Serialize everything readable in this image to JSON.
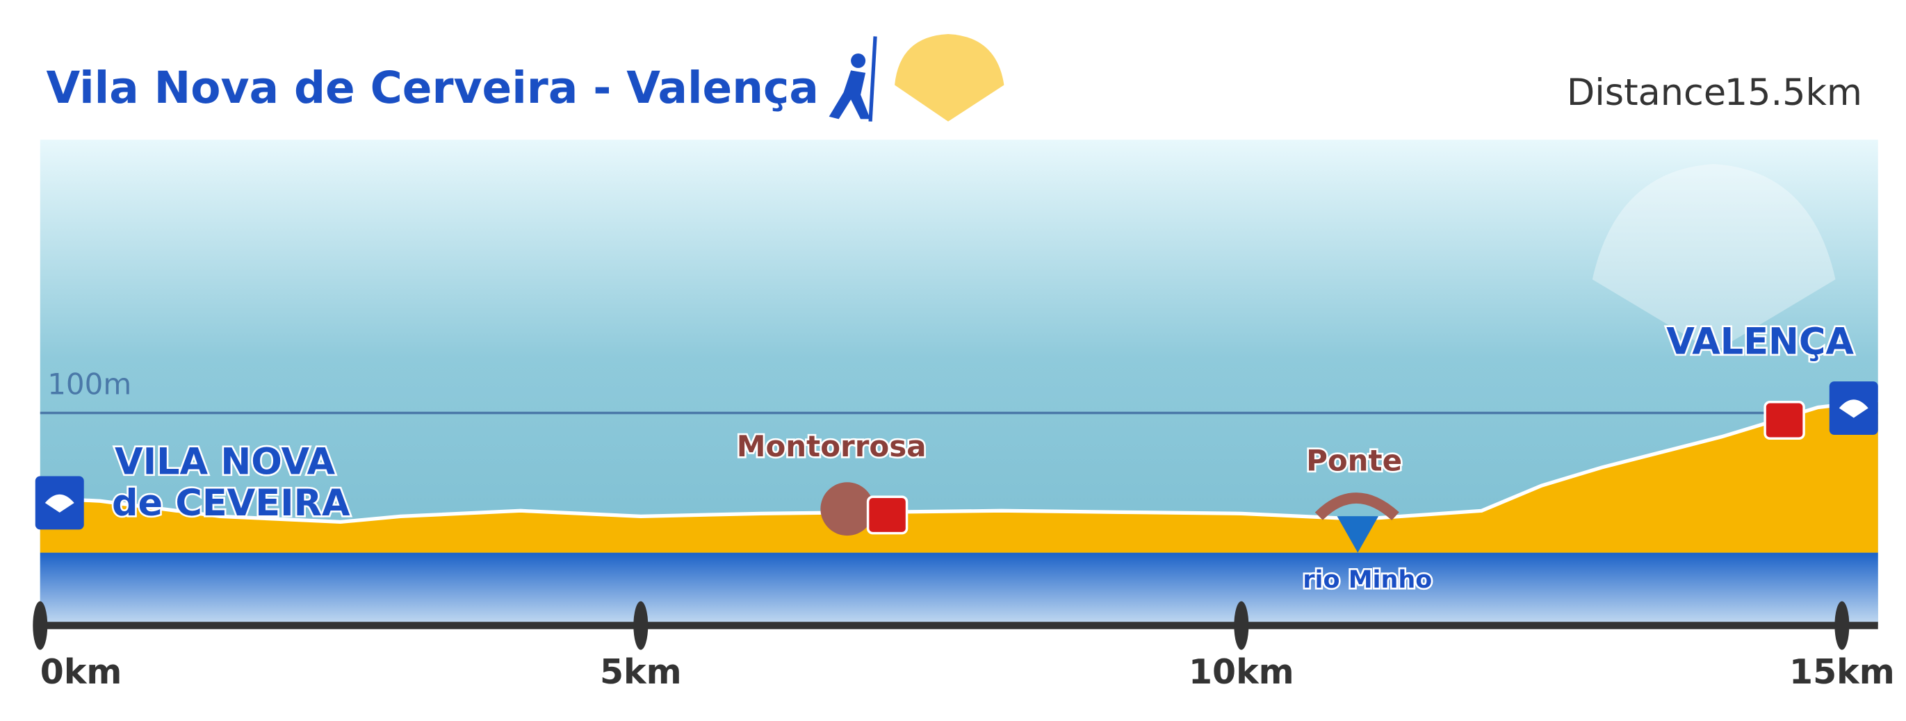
{
  "chart_data": {
    "type": "area",
    "title": "Vila Nova de Cerveira - Valença",
    "distance_label": "Distance",
    "distance": "15.5km",
    "x": [
      0,
      0.5,
      1.5,
      2.5,
      3,
      4,
      5,
      6,
      7,
      8,
      9,
      10,
      11,
      12,
      12.5,
      13,
      14,
      14.8,
      15.3
    ],
    "values": [
      39,
      37,
      26,
      22,
      26,
      30,
      26,
      28,
      29,
      30,
      29,
      28,
      24,
      30,
      48,
      61,
      83,
      104,
      109
    ],
    "color": "#f7b500",
    "xlim": [
      0,
      15.3
    ],
    "ylim": [
      0,
      300
    ],
    "xticks": [
      {
        "value": 0,
        "label": "0km"
      },
      {
        "value": 5,
        "label": "5km"
      },
      {
        "value": 10,
        "label": "10km"
      },
      {
        "value": 15,
        "label": "15km"
      }
    ],
    "yticks": [
      {
        "value": 100,
        "label": "100m"
      }
    ],
    "annotations": [
      "VILA NOVA",
      "de CEVEIRA",
      "Montorrosa",
      "Ponte",
      "rio Minho",
      "VALENÇA"
    ]
  }
}
